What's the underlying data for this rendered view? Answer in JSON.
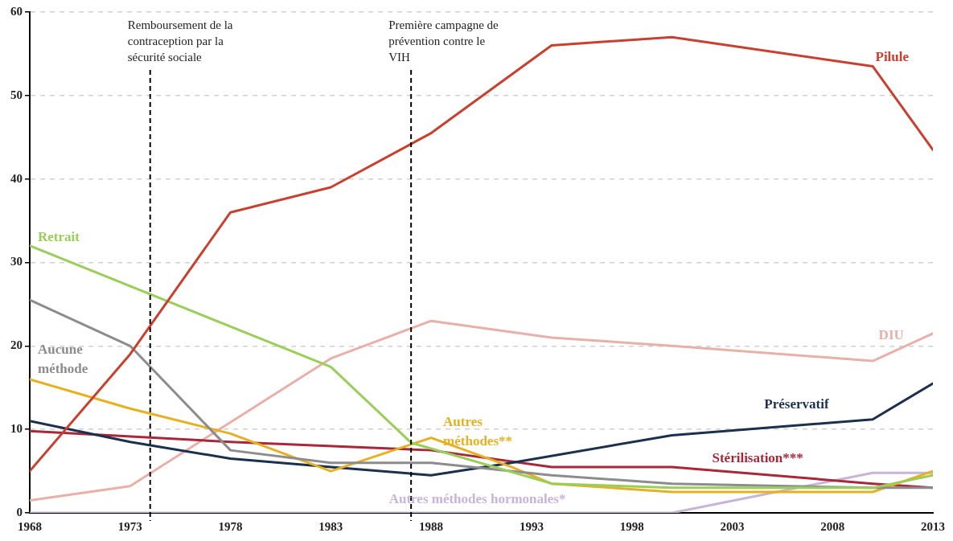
{
  "chart_data": {
    "type": "line",
    "xlim": [
      1968,
      2013
    ],
    "xticks": [
      1968,
      1973,
      1978,
      1983,
      1988,
      1993,
      1998,
      2003,
      2008,
      2013
    ],
    "ylim": [
      0,
      60
    ],
    "yticks": [
      0,
      10,
      20,
      30,
      40,
      50,
      60
    ],
    "grid": "y",
    "legend": false,
    "marker": "none",
    "line_style": "solid",
    "series": [
      {
        "name": "Pilule",
        "color": "#c8402f",
        "x": [
          1968,
          1973,
          1978,
          1983,
          1988,
          1994,
          2000,
          2010,
          2013
        ],
        "values": [
          5,
          19,
          36,
          39,
          45.5,
          56,
          57,
          53.5,
          43.5
        ]
      },
      {
        "name": "Retrait",
        "color": "#9acd5a",
        "x": [
          1968,
          1983,
          1987,
          1994,
          2000,
          2010,
          2013
        ],
        "values": [
          32,
          17.5,
          8.4,
          3.5,
          3,
          3,
          4.5
        ]
      },
      {
        "name": "Aucune méthode",
        "color": "#8c8c8c",
        "x": [
          1968,
          1973,
          1978,
          1983,
          1988,
          1994,
          2000,
          2010,
          2013
        ],
        "values": [
          25.5,
          20,
          7.5,
          6,
          6,
          4.5,
          3.5,
          3,
          3
        ]
      },
      {
        "name": "Autres méthodes**",
        "color": "#e6b020",
        "x": [
          1968,
          1973,
          1978,
          1983,
          1988,
          1992,
          1994,
          2000,
          2010,
          2013
        ],
        "values": [
          16,
          12.5,
          9.5,
          5,
          9,
          5.5,
          3.5,
          2.5,
          2.5,
          5
        ]
      },
      {
        "name": "Préservatif",
        "color": "#1b2f4e",
        "x": [
          1968,
          1973,
          1978,
          1983,
          1988,
          1992,
          2000,
          2010,
          2013
        ],
        "values": [
          11,
          8.5,
          6.5,
          5.5,
          4.5,
          6,
          9.3,
          11.2,
          15.5
        ]
      },
      {
        "name": "Stérilisation***",
        "color": "#a8283a",
        "x": [
          1968,
          1978,
          1988,
          1994,
          2000,
          2010,
          2013
        ],
        "values": [
          9.8,
          8.5,
          7.5,
          5.5,
          5.5,
          3.5,
          3
        ]
      },
      {
        "name": "DIU",
        "color": "#e8b0a8",
        "x": [
          1968,
          1973,
          1983,
          1988,
          1994,
          2000,
          2010,
          2013
        ],
        "values": [
          1.5,
          3.2,
          18.5,
          23,
          21,
          20,
          18.2,
          21.5
        ]
      },
      {
        "name": "Autres méthodes hormonales*",
        "color": "#c8b4d8",
        "x": [
          1968,
          2000,
          2010,
          2013
        ],
        "values": [
          0,
          0,
          4.8,
          4.8
        ]
      }
    ],
    "ref_lines": [
      {
        "axis": "x",
        "value": 1974,
        "label": "Remboursement de la\ncontraception par la\nsécurité sociale",
        "color": "#000000",
        "line_style": "dashed"
      },
      {
        "axis": "x",
        "value": 1987,
        "label": "Première campagne de\nprévention contre le\nVIH",
        "color": "#000000",
        "line_style": "dashed"
      }
    ]
  }
}
